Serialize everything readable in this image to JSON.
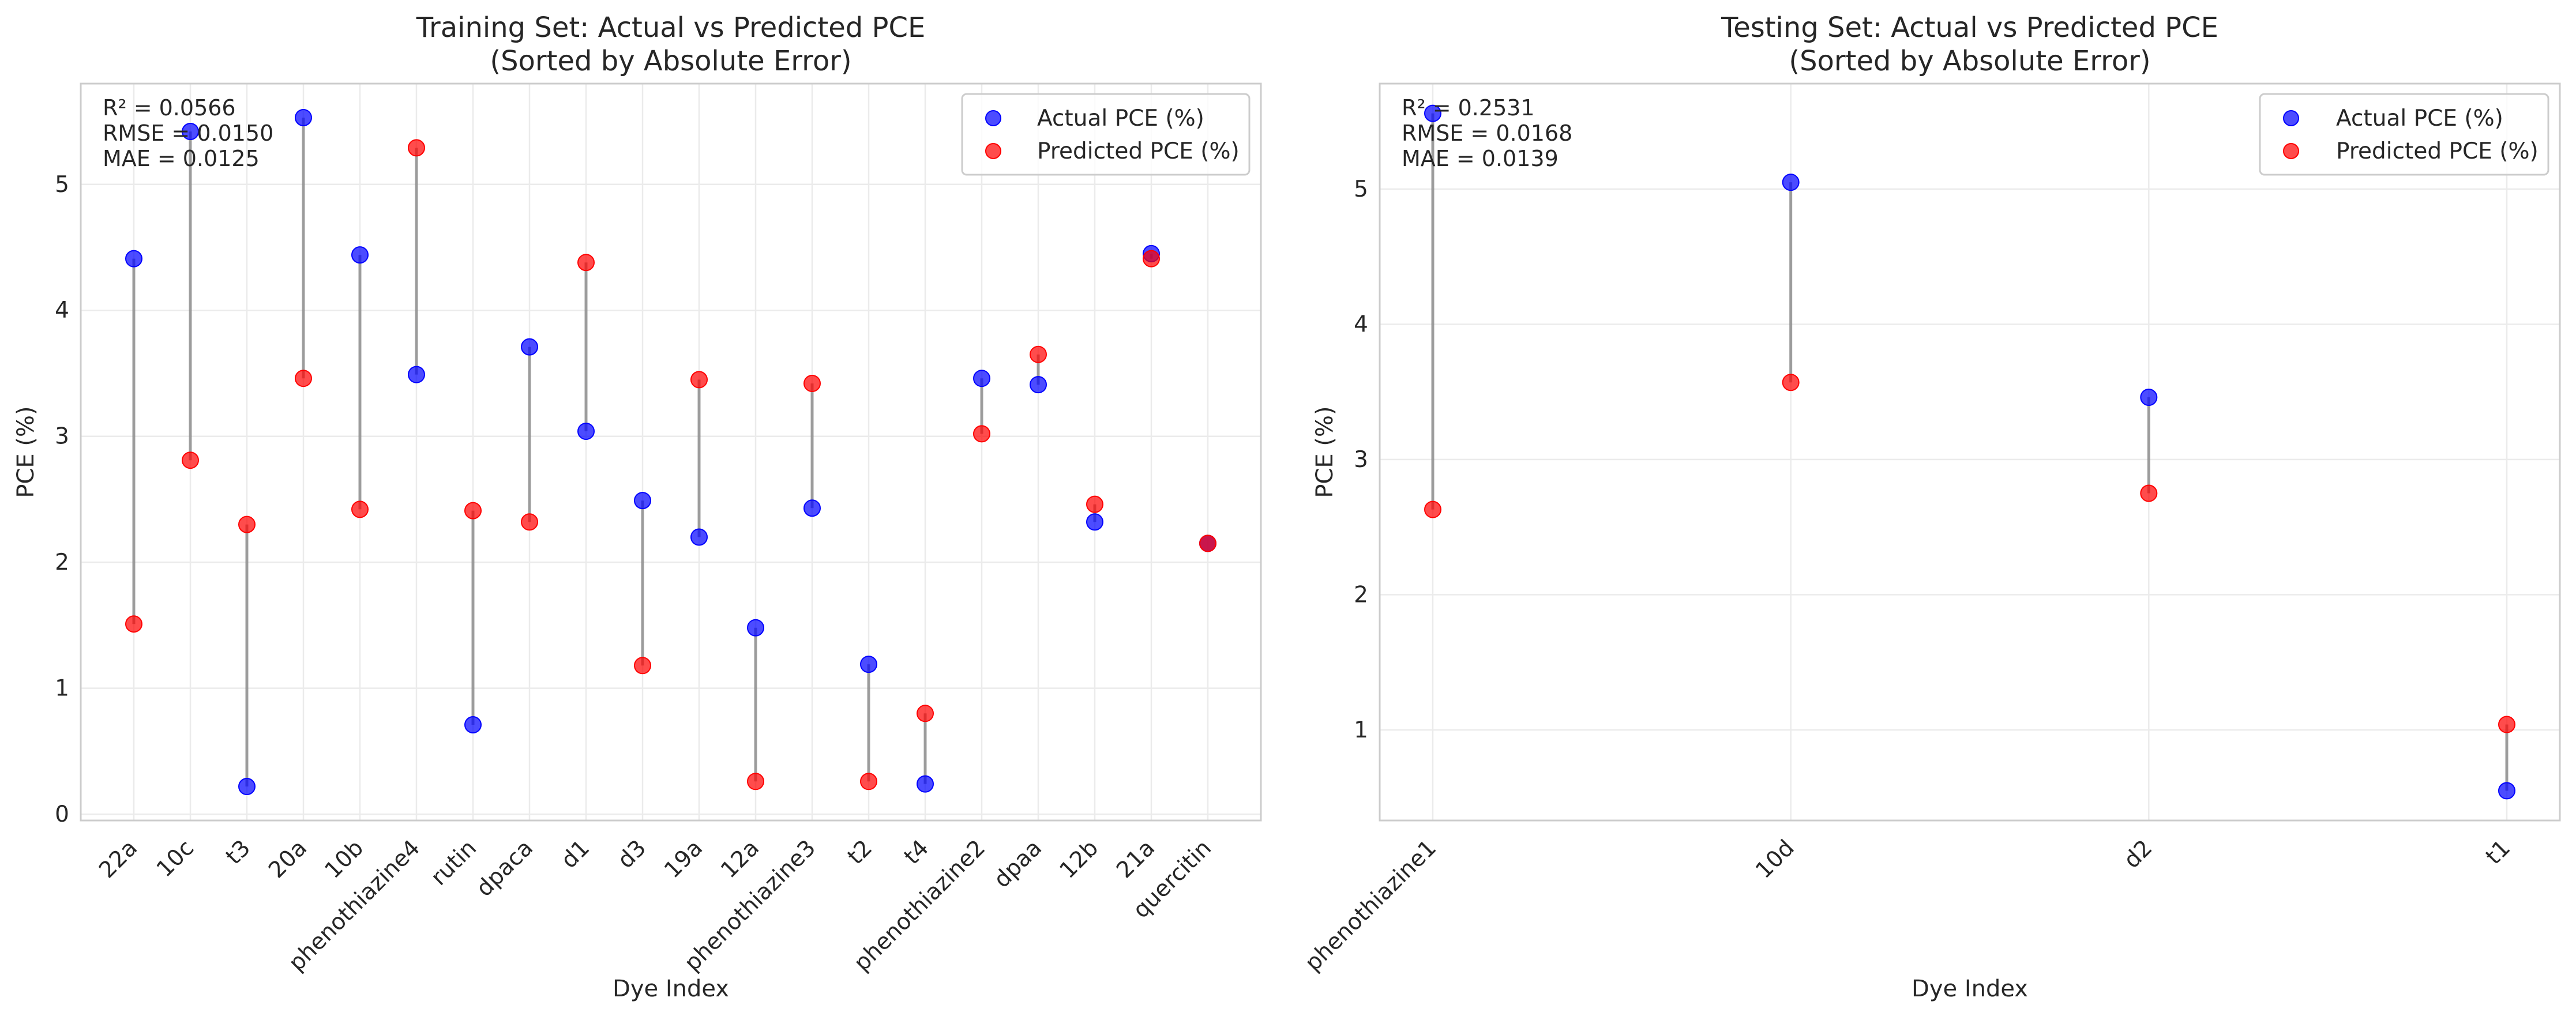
{
  "chart_data": [
    {
      "type": "scatter",
      "title": "Training Set: Actual vs Predicted PCE",
      "subtitle": "(Sorted by Absolute Error)",
      "xlabel": "Dye Index",
      "ylabel": "PCE (%)",
      "ylim": [
        -0.05,
        5.8
      ],
      "yticks": [
        0,
        1,
        2,
        3,
        4,
        5
      ],
      "grid": true,
      "legend_position": "upper-right",
      "stats": [
        "R² = 0.0566",
        "RMSE = 0.0150",
        "MAE = 0.0125"
      ],
      "categories": [
        "22a",
        "10c",
        "t3",
        "20a",
        "10b",
        "phenothiazine4",
        "rutin",
        "dpaca",
        "d1",
        "d3",
        "19a",
        "12a",
        "phenothiazine3",
        "t2",
        "t4",
        "phenothiazine2",
        "dpaa",
        "12b",
        "21a",
        "quercitin"
      ],
      "series": [
        {
          "name": "Actual PCE (%)",
          "color": "#0000ff",
          "values": [
            4.41,
            5.42,
            0.22,
            5.53,
            4.44,
            3.49,
            0.71,
            3.71,
            3.04,
            2.49,
            2.2,
            1.48,
            2.43,
            1.19,
            0.24,
            3.46,
            3.41,
            2.32,
            4.45,
            2.15
          ]
        },
        {
          "name": "Predicted PCE (%)",
          "color": "#ff0000",
          "values": [
            1.51,
            2.81,
            2.3,
            3.46,
            2.42,
            5.29,
            2.41,
            2.32,
            4.38,
            1.18,
            3.45,
            0.26,
            3.42,
            0.26,
            0.8,
            3.02,
            3.65,
            2.46,
            4.41,
            2.15
          ]
        }
      ]
    },
    {
      "type": "scatter",
      "title": "Testing Set: Actual vs Predicted PCE",
      "subtitle": "(Sorted by Absolute Error)",
      "xlabel": "Dye Index",
      "ylabel": "PCE (%)",
      "ylim": [
        0.33,
        5.78
      ],
      "yticks": [
        1,
        2,
        3,
        4,
        5
      ],
      "grid": true,
      "legend_position": "upper-right",
      "stats": [
        "R² = 0.2531",
        "RMSE = 0.0168",
        "MAE = 0.0139"
      ],
      "categories": [
        "phenothiazine1",
        "10d",
        "d2",
        "t1"
      ],
      "series": [
        {
          "name": "Actual PCE (%)",
          "color": "#0000ff",
          "values": [
            5.56,
            5.05,
            3.46,
            0.55
          ]
        },
        {
          "name": "Predicted PCE (%)",
          "color": "#ff0000",
          "values": [
            2.63,
            3.57,
            2.75,
            1.04
          ]
        }
      ]
    }
  ]
}
